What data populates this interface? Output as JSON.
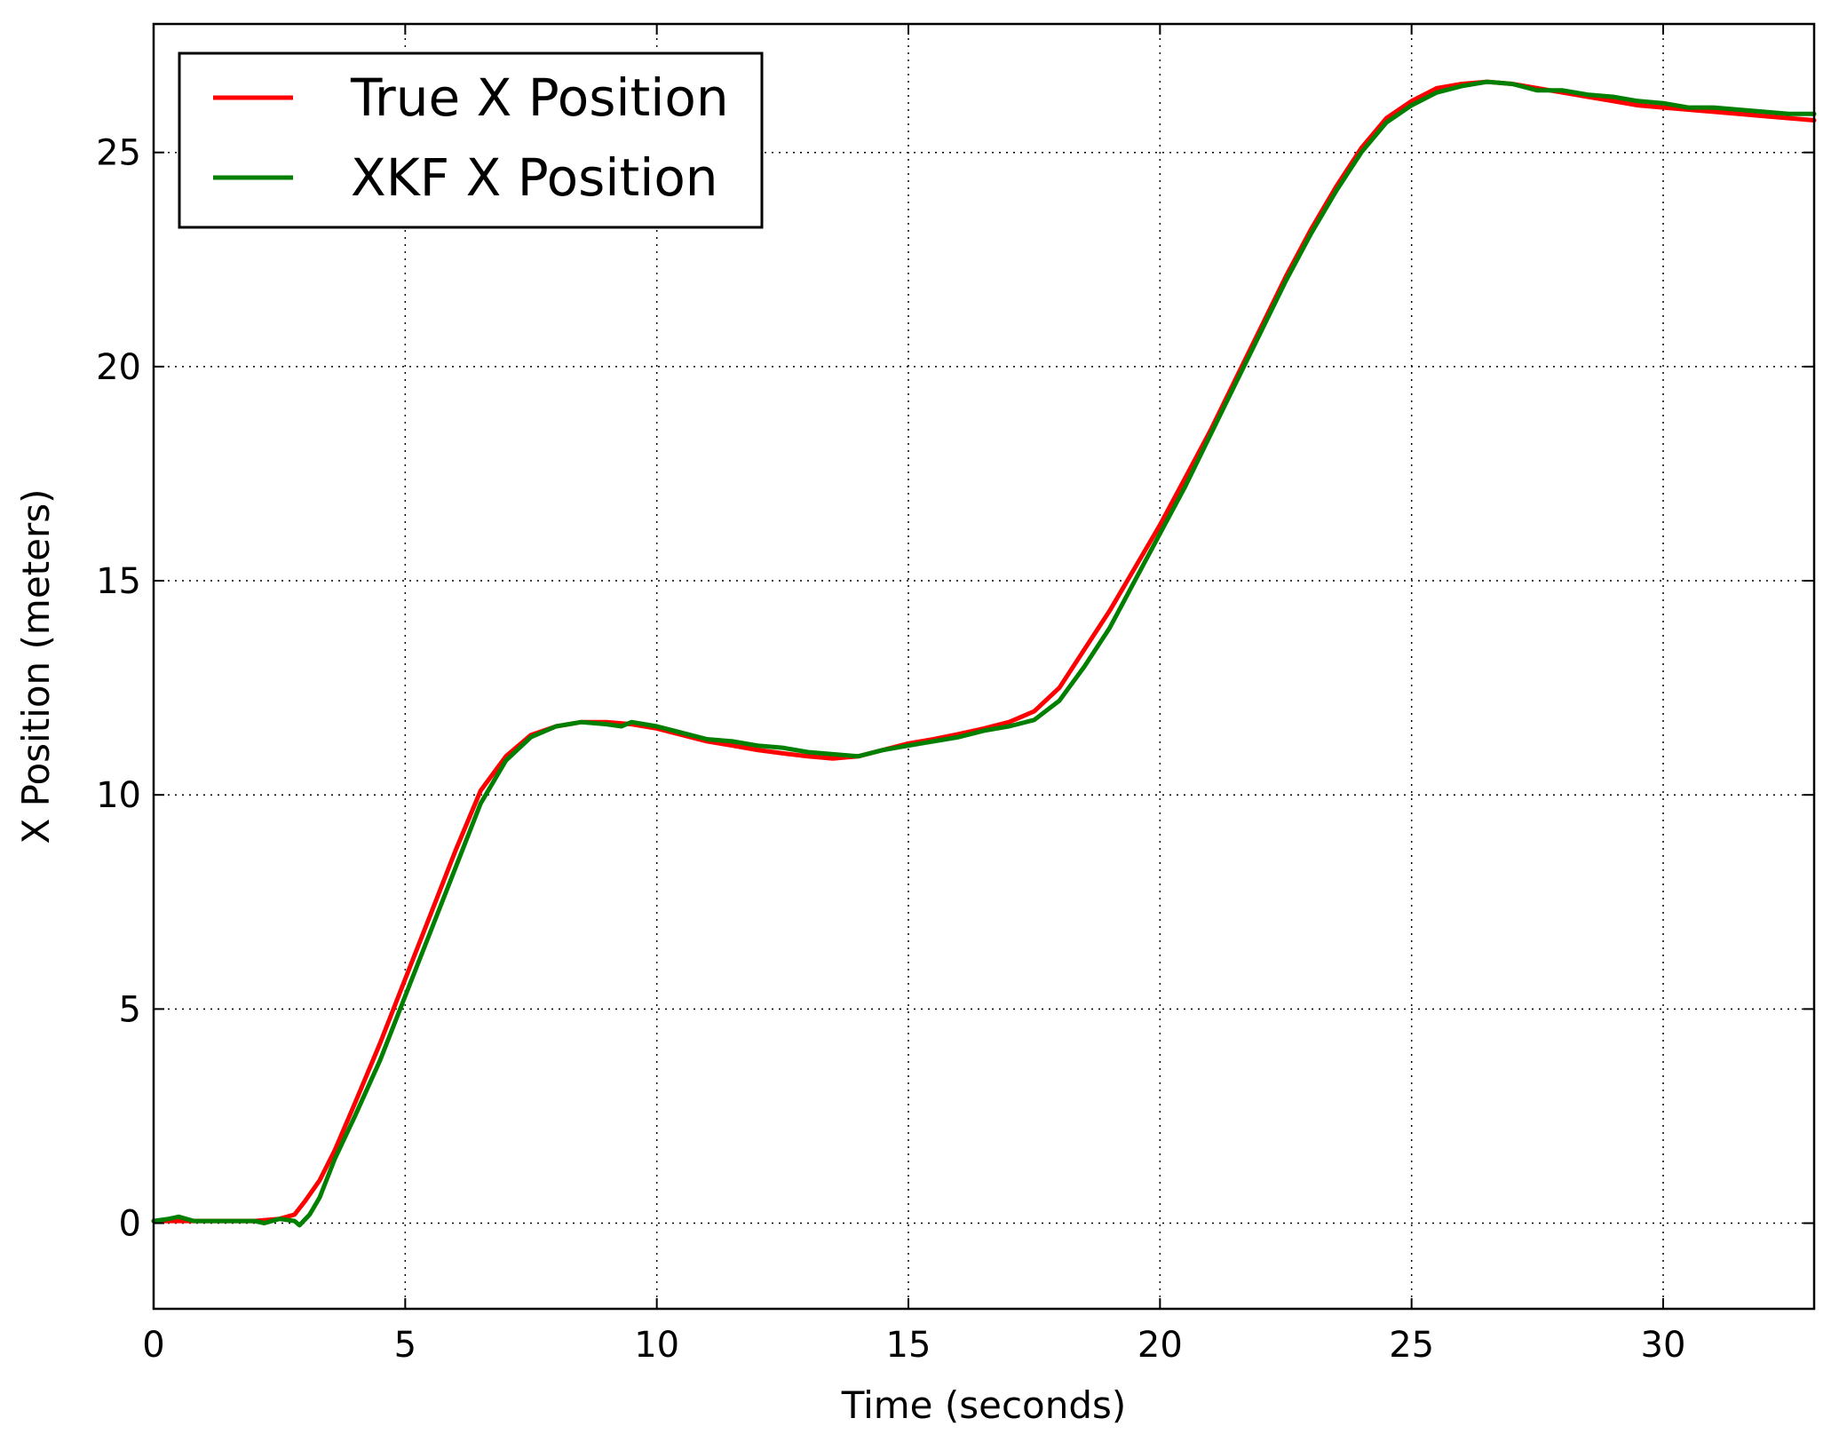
{
  "chart_data": {
    "type": "line",
    "title": "",
    "xlabel": "Time (seconds)",
    "ylabel": "X Position (meters)",
    "xlim": [
      0,
      33
    ],
    "ylim": [
      -2,
      28
    ],
    "xticks": [
      0,
      5,
      10,
      15,
      20,
      25,
      30
    ],
    "yticks": [
      0,
      5,
      10,
      15,
      20,
      25
    ],
    "xtick_labels": [
      "0",
      "5",
      "10",
      "15",
      "20",
      "25",
      "30"
    ],
    "ytick_labels": [
      "0",
      "5",
      "10",
      "15",
      "20",
      "25"
    ],
    "grid": true,
    "legend_position": "top-left",
    "series": [
      {
        "name": "True X Position",
        "color": "#ff0000",
        "x": [
          0,
          0.5,
          1,
          1.5,
          2,
          2.5,
          2.8,
          3,
          3.3,
          3.6,
          4,
          4.5,
          5,
          5.5,
          6,
          6.5,
          7,
          7.5,
          8,
          8.5,
          9,
          9.5,
          10,
          10.5,
          11,
          11.5,
          12,
          12.5,
          13,
          13.5,
          14,
          14.5,
          15,
          15.5,
          16,
          16.5,
          17,
          17.5,
          18,
          18.5,
          19,
          19.5,
          20,
          20.5,
          21,
          21.5,
          22,
          22.5,
          23,
          23.5,
          24,
          24.5,
          25,
          25.5,
          26,
          26.5,
          27,
          27.5,
          28,
          28.5,
          29,
          29.5,
          30,
          30.5,
          31,
          31.5,
          32,
          32.5,
          33
        ],
        "y": [
          0.05,
          0.05,
          0.05,
          0.05,
          0.05,
          0.1,
          0.2,
          0.5,
          1.0,
          1.7,
          2.8,
          4.2,
          5.7,
          7.2,
          8.7,
          10.1,
          10.9,
          11.4,
          11.6,
          11.7,
          11.7,
          11.65,
          11.55,
          11.4,
          11.25,
          11.15,
          11.05,
          10.97,
          10.9,
          10.85,
          10.9,
          11.05,
          11.2,
          11.3,
          11.42,
          11.55,
          11.7,
          11.95,
          12.5,
          13.4,
          14.3,
          15.3,
          16.3,
          17.4,
          18.5,
          19.7,
          20.9,
          22.1,
          23.2,
          24.2,
          25.1,
          25.8,
          26.2,
          26.5,
          26.6,
          26.65,
          26.6,
          26.5,
          26.4,
          26.3,
          26.2,
          26.1,
          26.05,
          26.0,
          25.95,
          25.9,
          25.85,
          25.8,
          25.75
        ]
      },
      {
        "name": "XKF X Position",
        "color": "#007f00",
        "x": [
          0,
          0.3,
          0.5,
          0.8,
          1,
          1.5,
          2,
          2.2,
          2.5,
          2.8,
          2.9,
          3.1,
          3.3,
          3.6,
          4,
          4.5,
          5,
          5.5,
          6,
          6.5,
          7,
          7.5,
          8,
          8.5,
          9,
          9.3,
          9.5,
          10,
          10.5,
          11,
          11.5,
          12,
          12.5,
          13,
          13.5,
          14,
          14.5,
          15,
          15.5,
          16,
          16.5,
          17,
          17.5,
          18,
          18.5,
          19,
          19.5,
          20,
          20.5,
          21,
          21.5,
          22,
          22.5,
          23,
          23.5,
          24,
          24.5,
          25,
          25.5,
          26,
          26.5,
          27,
          27.5,
          28,
          28.5,
          29,
          29.5,
          30,
          30.5,
          31,
          31.5,
          32,
          32.5,
          33
        ],
        "y": [
          0.05,
          0.1,
          0.15,
          0.05,
          0.05,
          0.05,
          0.05,
          0.0,
          0.1,
          0.05,
          -0.05,
          0.2,
          0.6,
          1.5,
          2.5,
          3.8,
          5.3,
          6.8,
          8.3,
          9.8,
          10.8,
          11.35,
          11.6,
          11.7,
          11.65,
          11.6,
          11.7,
          11.6,
          11.45,
          11.3,
          11.25,
          11.15,
          11.1,
          11.0,
          10.95,
          10.9,
          11.05,
          11.15,
          11.25,
          11.35,
          11.5,
          11.6,
          11.75,
          12.2,
          13.0,
          13.9,
          15.0,
          16.1,
          17.2,
          18.4,
          19.6,
          20.8,
          22.0,
          23.1,
          24.1,
          25.0,
          25.7,
          26.1,
          26.4,
          26.55,
          26.65,
          26.6,
          26.45,
          26.45,
          26.35,
          26.3,
          26.2,
          26.15,
          26.05,
          26.05,
          26.0,
          25.95,
          25.9,
          25.9
        ]
      }
    ]
  }
}
